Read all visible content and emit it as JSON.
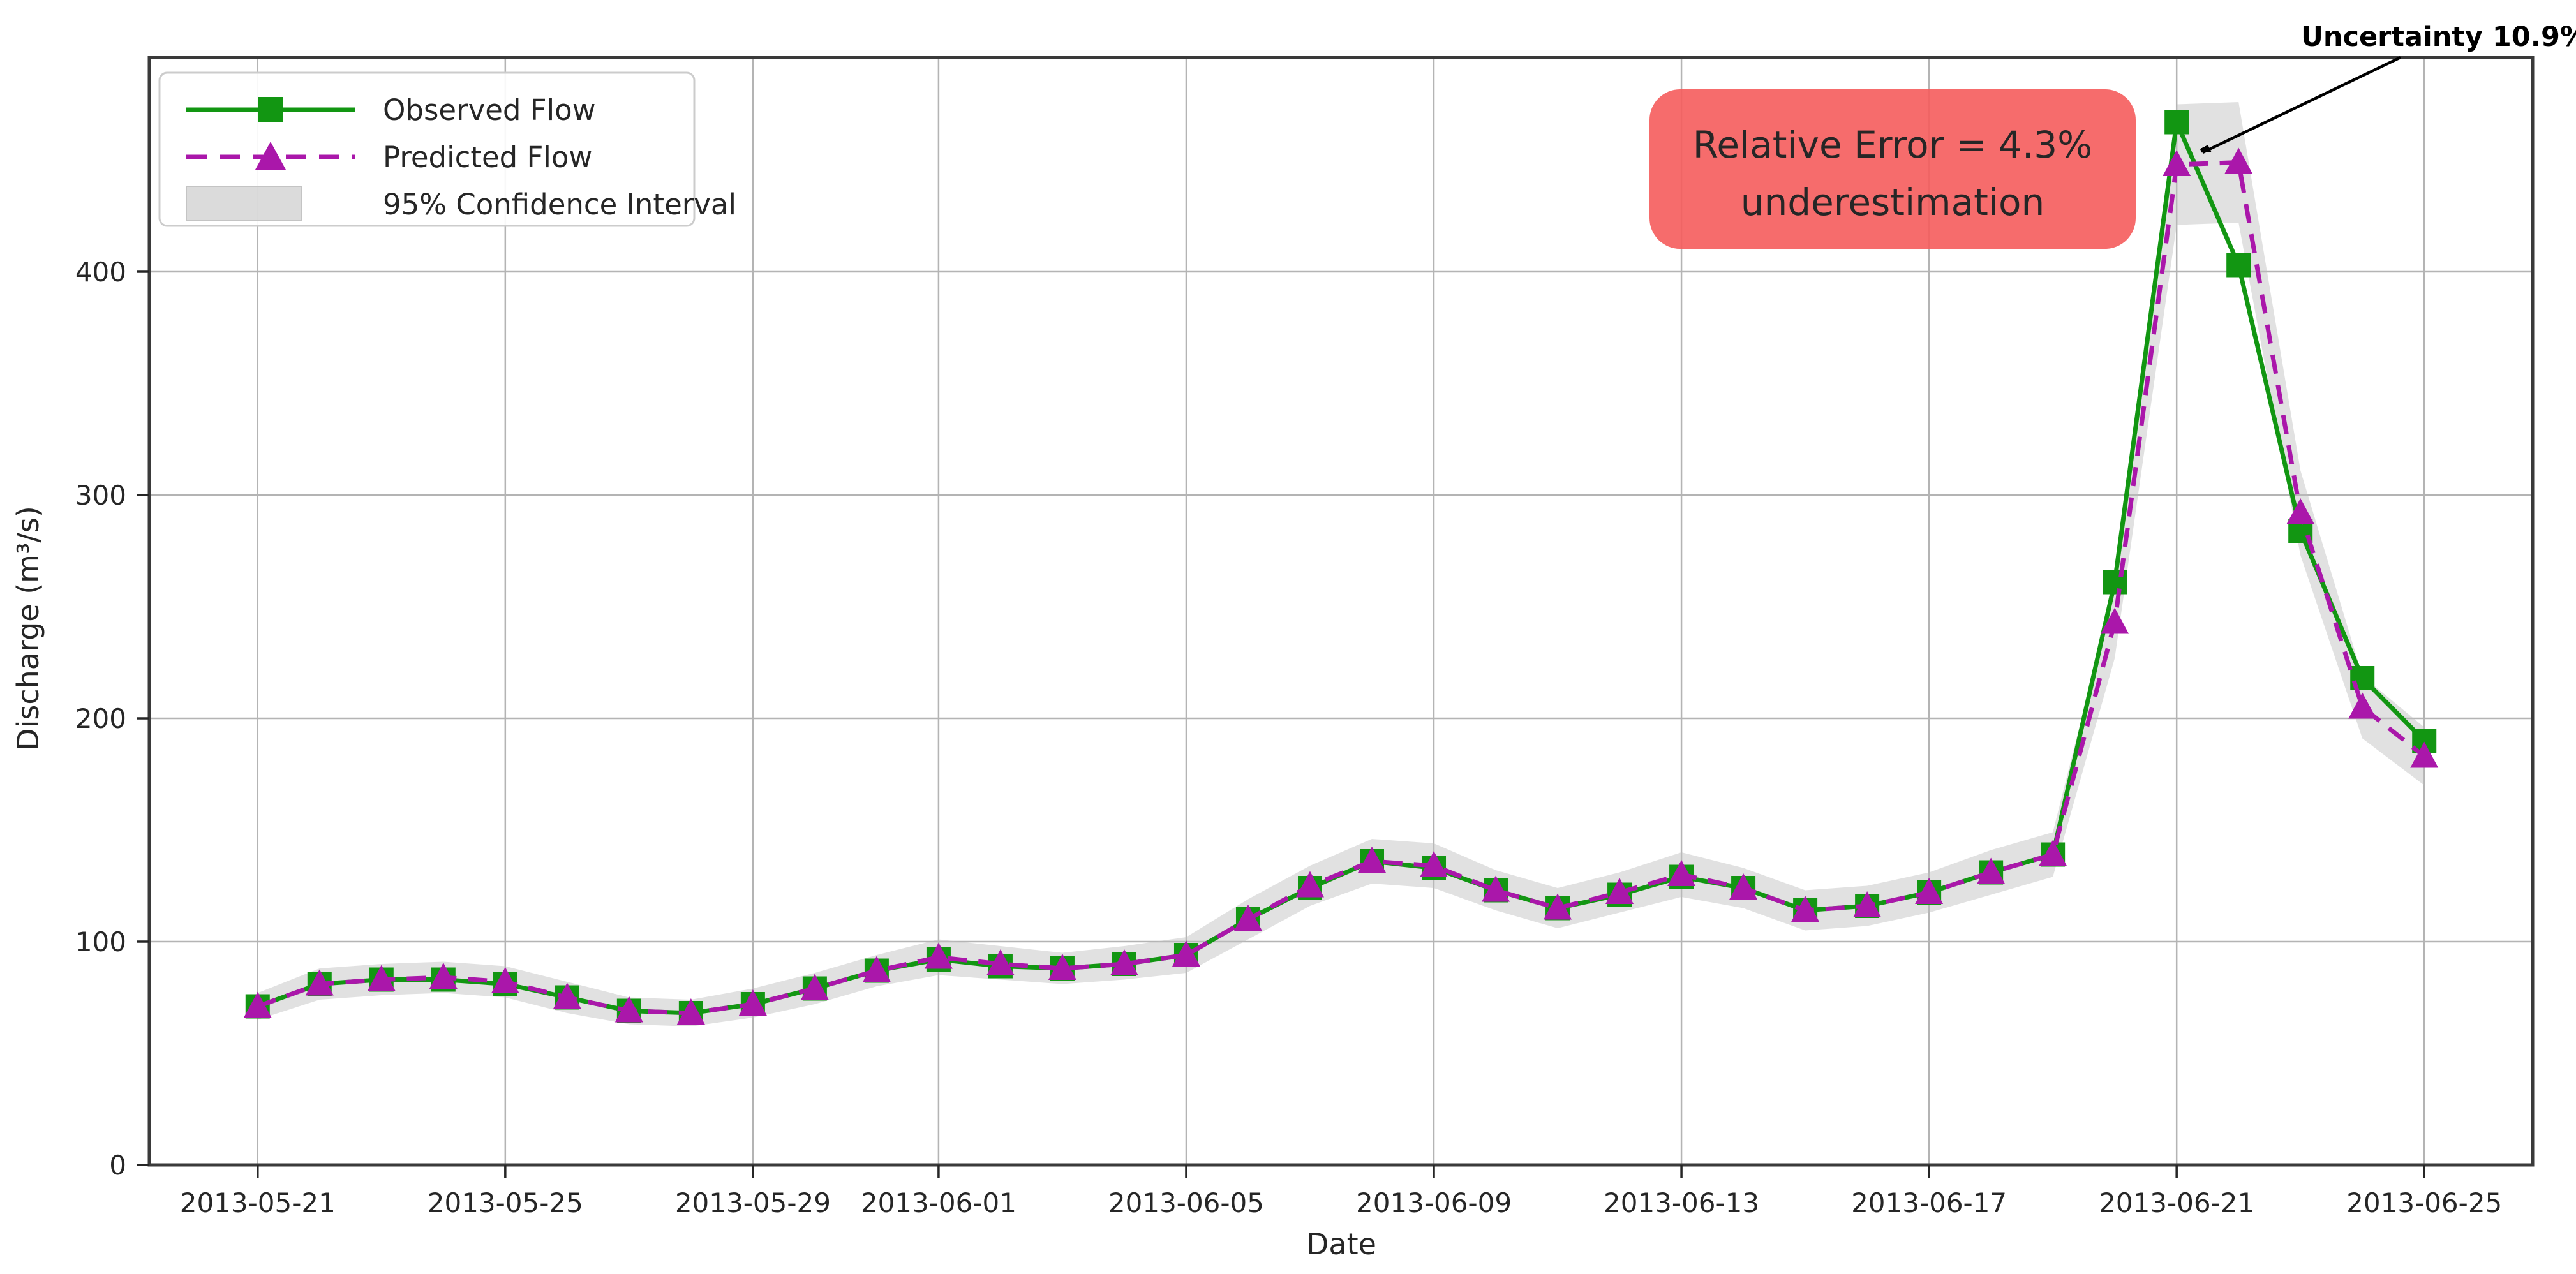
{
  "figure": {
    "background": "#ffffff",
    "annotations": {
      "uncertainty_label": "Uncertainty 10.9%",
      "relative_error_line1": "Relative Error = 4.3%",
      "relative_error_line2": "underestimation",
      "box_color": "#f55c5c",
      "box_text_color": "#3f1010",
      "arrow_color": "#000000"
    }
  },
  "chart_data": {
    "type": "line",
    "title": "",
    "xlabel": "Date",
    "ylabel": "Discharge (m³/s)",
    "grid": true,
    "legend_position": "upper left",
    "ylim": [
      0,
      496
    ],
    "y_ticks": [
      {
        "label": "0",
        "value": 0
      },
      {
        "label": "100",
        "value": 100
      },
      {
        "label": "200",
        "value": 200
      },
      {
        "label": "300",
        "value": 300
      },
      {
        "label": "400",
        "value": 400
      }
    ],
    "x_ticks": [
      {
        "label": "2013-05-21",
        "day": 0
      },
      {
        "label": "2013-05-25",
        "day": 4
      },
      {
        "label": "2013-05-29",
        "day": 8
      },
      {
        "label": "2013-06-01",
        "day": 11
      },
      {
        "label": "2013-06-05",
        "day": 15
      },
      {
        "label": "2013-06-09",
        "day": 19
      },
      {
        "label": "2013-06-13",
        "day": 23
      },
      {
        "label": "2013-06-17",
        "day": 27
      },
      {
        "label": "2013-06-21",
        "day": 31
      },
      {
        "label": "2013-06-25",
        "day": 35
      }
    ],
    "dates": [
      "2013-05-21",
      "2013-05-22",
      "2013-05-23",
      "2013-05-24",
      "2013-05-25",
      "2013-05-26",
      "2013-05-27",
      "2013-05-28",
      "2013-05-29",
      "2013-05-30",
      "2013-05-31",
      "2013-06-01",
      "2013-06-02",
      "2013-06-03",
      "2013-06-04",
      "2013-06-05",
      "2013-06-06",
      "2013-06-07",
      "2013-06-08",
      "2013-06-09",
      "2013-06-10",
      "2013-06-11",
      "2013-06-12",
      "2013-06-13",
      "2013-06-14",
      "2013-06-15",
      "2013-06-16",
      "2013-06-17",
      "2013-06-18",
      "2013-06-19",
      "2013-06-20",
      "2013-06-21",
      "2013-06-22",
      "2013-06-23",
      "2013-06-24",
      "2013-06-25"
    ],
    "series": [
      {
        "name": "Observed Flow",
        "color": "#129612",
        "style": "solid",
        "marker": "square",
        "values": [
          71,
          81,
          83,
          83,
          81,
          75,
          69,
          68,
          72,
          79,
          87,
          92,
          89,
          88,
          90,
          94,
          110,
          124,
          136,
          133,
          123,
          115,
          121,
          129,
          124,
          114,
          116,
          122,
          131,
          139,
          261,
          467,
          403,
          284,
          218,
          190
        ]
      },
      {
        "name": "Predicted Flow",
        "color": "#aa17aa",
        "style": "dashed",
        "marker": "triangle",
        "values": [
          71,
          81,
          83,
          84,
          82,
          75,
          69,
          68,
          72,
          79,
          87,
          93,
          90,
          88,
          90,
          94,
          110,
          125,
          136,
          134,
          123,
          115,
          122,
          130,
          124,
          114,
          116,
          122,
          131,
          139,
          243,
          448,
          449,
          292,
          205,
          183
        ]
      }
    ],
    "confidence_interval": {
      "name": "95% Confidence Interval",
      "color": "#bdbdbd",
      "lower": [
        65,
        74,
        76,
        77,
        75,
        68,
        63,
        62,
        66,
        72,
        80,
        85,
        83,
        81,
        83,
        86,
        101,
        116,
        126,
        124,
        114,
        106,
        113,
        120,
        115,
        105,
        107,
        113,
        121,
        129,
        227,
        421,
        422,
        273,
        191,
        170
      ],
      "upper": [
        77,
        88,
        90,
        91,
        89,
        82,
        75,
        74,
        79,
        86,
        94,
        101,
        98,
        95,
        98,
        102,
        119,
        134,
        146,
        144,
        132,
        124,
        131,
        140,
        133,
        123,
        125,
        131,
        141,
        149,
        259,
        475,
        476,
        311,
        219,
        196
      ]
    }
  }
}
